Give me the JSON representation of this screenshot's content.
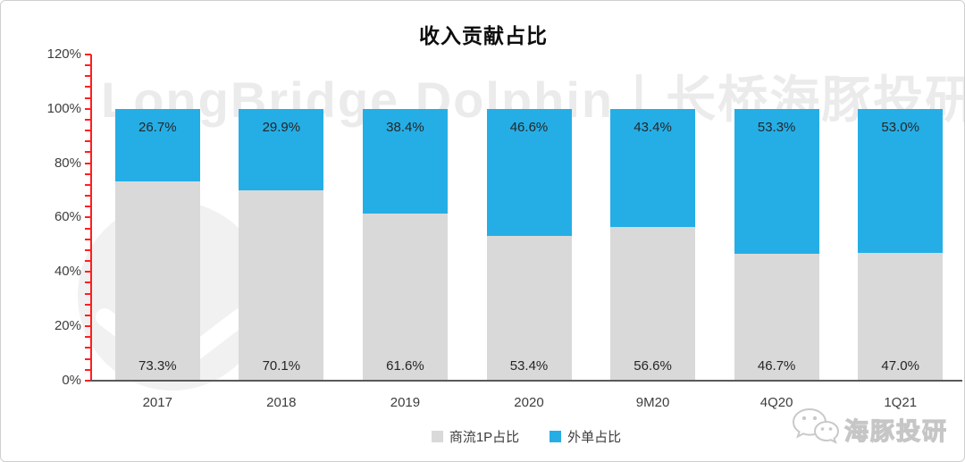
{
  "watermark": {
    "text": "LongBridge Dolphin丨长桥海豚投研"
  },
  "branding": {
    "icon": "wechat-icon",
    "name": "海豚投研"
  },
  "chart_data": {
    "type": "bar",
    "variant": "stacked-100-percent",
    "title": "收入贡献占比",
    "categories": [
      "2017",
      "2018",
      "2019",
      "2020",
      "9M20",
      "4Q20",
      "1Q21"
    ],
    "series": [
      {
        "name": "商流1P占比",
        "color": "#d9d9d9",
        "label_position": "inside-base",
        "values": [
          73.3,
          70.1,
          61.6,
          53.4,
          56.6,
          46.7,
          47.0
        ]
      },
      {
        "name": "外单占比",
        "color": "#25aee6",
        "label_position": "inside-top",
        "values": [
          26.7,
          29.9,
          38.4,
          46.6,
          43.4,
          53.3,
          53.0
        ]
      }
    ],
    "value_suffix": "%",
    "value_decimals": 1,
    "y_axis": {
      "min": 0,
      "max": 120,
      "major_step": 20,
      "minor_tick_step": 4,
      "tick_labels": [
        "0%",
        "20%",
        "40%",
        "60%",
        "80%",
        "100%",
        "120%"
      ],
      "axis_color": "#ff1f1f"
    },
    "x_axis": {
      "axis_color": "#595959"
    },
    "gridlines": false,
    "legend_position": "bottom-center"
  }
}
